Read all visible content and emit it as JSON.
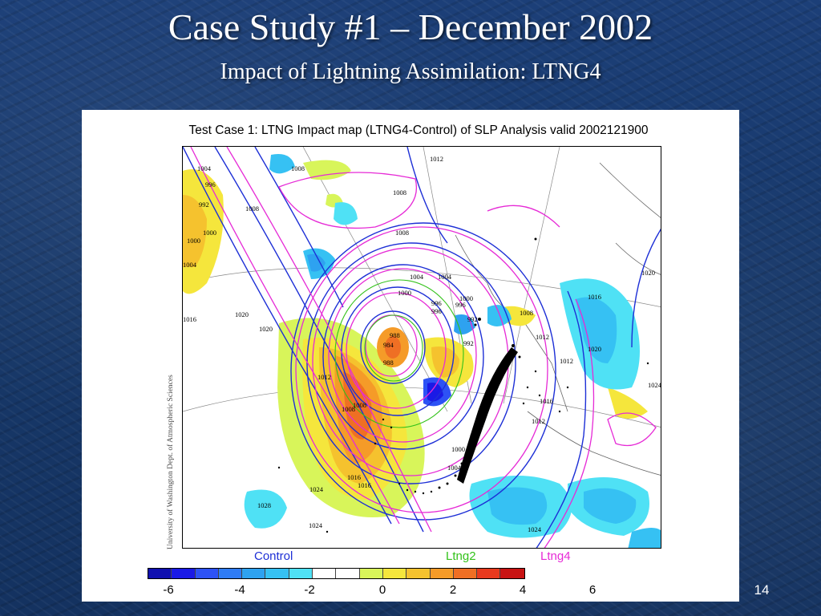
{
  "slide": {
    "title": "Case Study #1 – December 2002",
    "subtitle": "Impact of Lightning Assimilation: LTNG4",
    "number": "14"
  },
  "map": {
    "title": "Test Case 1: LTNG Impact map (LTNG4-Control) of SLP Analysis valid 2002121900",
    "credit": "University of Washington Dept. of Atmospheric Sciences",
    "legend": {
      "control": {
        "label": "Control",
        "color": "#1d2fd6"
      },
      "ltng2": {
        "label": "Ltng2",
        "color": "#33c21a"
      },
      "ltng4": {
        "label": "Ltng4",
        "color": "#e62ad6"
      }
    },
    "colorbar": {
      "colors": [
        "#1010b0",
        "#1a1ae6",
        "#2d52f5",
        "#2f7cf5",
        "#2ea2f0",
        "#36c1f3",
        "#4fe1f5",
        "#ffffff",
        "#ffffff",
        "#d8f55a",
        "#f5e63c",
        "#f5c22e",
        "#f59b28",
        "#ef6f24",
        "#e83a1e",
        "#c81313"
      ],
      "ticks": [
        "-6",
        "-4",
        "-2",
        "0",
        "2",
        "4",
        "6"
      ]
    },
    "contour_labels": [
      "1012",
      "1016",
      "1008",
      "1008",
      "1008",
      "1004",
      "1000",
      "996",
      "1000",
      "992",
      "996",
      "1004",
      "1004",
      "1000",
      "996",
      "992",
      "984",
      "988",
      "988",
      "1020",
      "1020",
      "1016",
      "1012",
      "1012",
      "1008",
      "1008",
      "1016",
      "1016",
      "1028",
      "1024",
      "1024",
      "1004",
      "1000",
      "1024",
      "1008",
      "1012",
      "1016",
      "1020",
      "1020",
      "1024",
      "1012",
      "1008",
      "1004",
      "1000",
      "992",
      "996"
    ]
  }
}
